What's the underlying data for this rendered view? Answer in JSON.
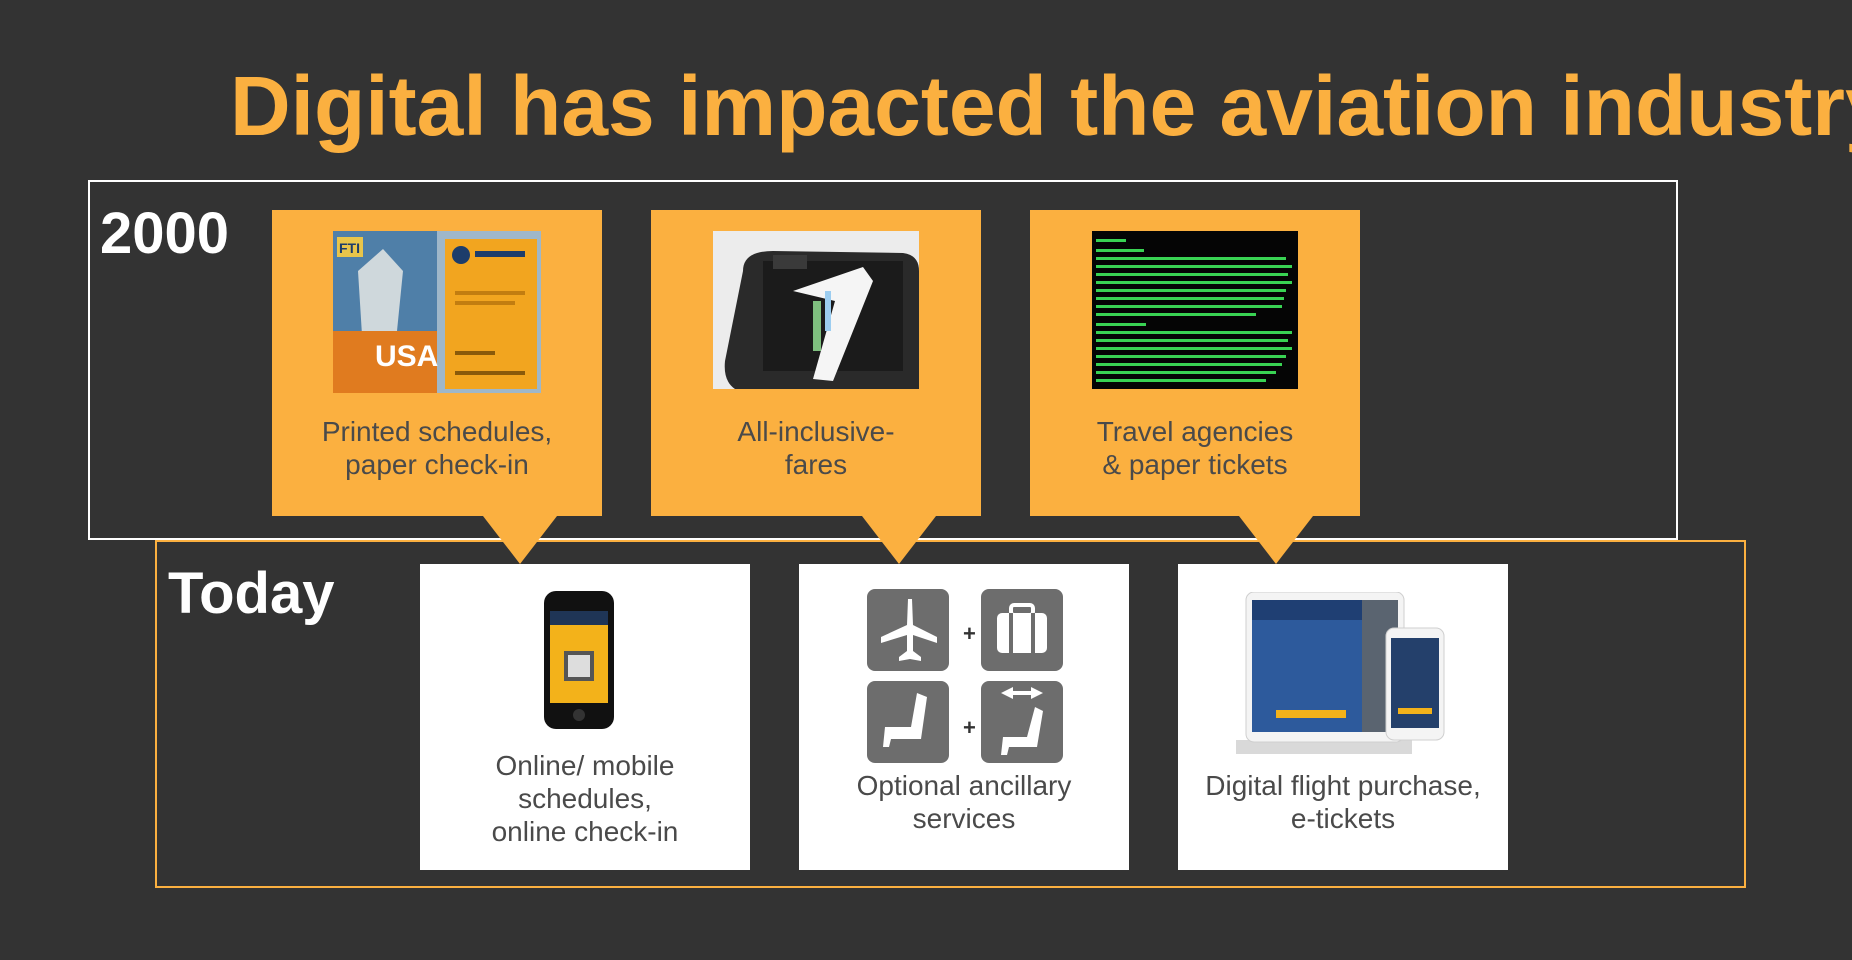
{
  "title": "Digital has impacted the aviation industry",
  "era_2000": {
    "label": "2000",
    "cards": [
      {
        "lines": [
          "Printed schedules,",
          "paper check-in"
        ],
        "image": "printed-schedule-booklets"
      },
      {
        "lines": [
          "All-inclusive-",
          "fares"
        ],
        "image": "suitcase-with-bag-tag"
      },
      {
        "lines": [
          "Travel agencies",
          "& paper tickets"
        ],
        "image": "green-terminal-screen"
      }
    ],
    "usa_text": "USA",
    "fti_text": "FTI"
  },
  "era_today": {
    "label": "Today",
    "cards": [
      {
        "lines": [
          "Online/ mobile",
          "schedules,",
          "online check-in"
        ],
        "image": "smartphone-boarding-pass"
      },
      {
        "lines": [
          "Optional ancillary",
          "services"
        ],
        "image": "ancillary-service-icons"
      },
      {
        "lines": [
          "Digital flight purchase,",
          "e-tickets"
        ],
        "image": "tablet-and-phone-app"
      }
    ]
  },
  "colors": {
    "accent": "#FBB040",
    "background": "#333333",
    "card_white": "#ffffff",
    "icon_grey": "#6d6d6d"
  }
}
